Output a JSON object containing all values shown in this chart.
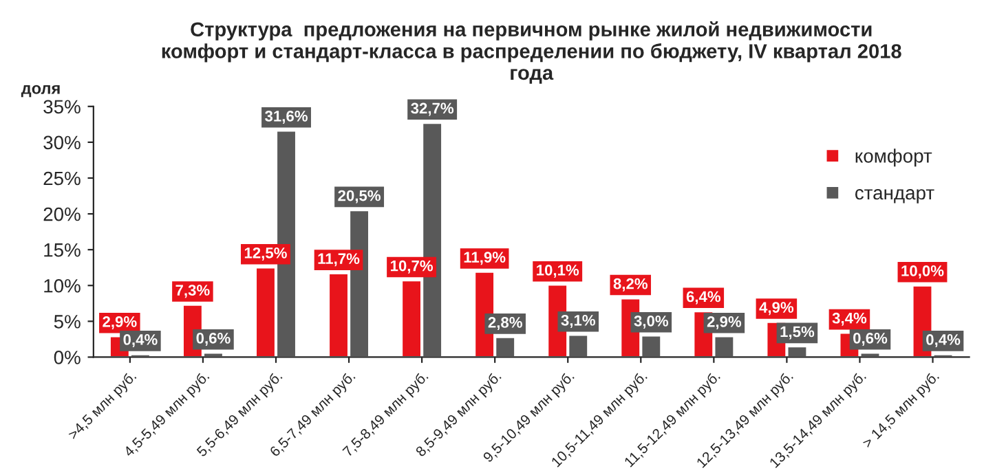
{
  "chart_data": {
    "type": "bar",
    "title": "Структура  предложения на первичном рынке жилой недвижимости\nкомфорт и стандарт-класса в распределении по бюджету, IV квартал 2018\nгода",
    "ylabel": "доля",
    "categories": [
      ">4,5 млн руб.",
      "4,5-5,49 млн руб.",
      "5,5-6,49 млн руб.",
      "6,5-7,49 млн руб.",
      "7,5-8,49 млн руб.",
      "8,5-9,49 млн руб.",
      "9,5-10,49 млн руб.",
      "10,5-11,49 млн руб.",
      "11,5-12,49 млн руб.",
      "12,5-13,49 млн руб.",
      "13,5-14,49 млн руб.",
      "> 14,5 млн руб."
    ],
    "series": [
      {
        "name": "комфорт",
        "color": "#e8141b",
        "values": [
          2.9,
          7.3,
          12.5,
          11.7,
          10.7,
          11.9,
          10.1,
          8.2,
          6.4,
          4.9,
          3.4,
          10.0
        ],
        "value_labels": [
          "2,9%",
          "7,3%",
          "12,5%",
          "11,7%",
          "10,7%",
          "11,9%",
          "10,1%",
          "8,2%",
          "6,4%",
          "4,9%",
          "3,4%",
          "10,0%"
        ]
      },
      {
        "name": "стандарт",
        "color": "#595959",
        "values": [
          0.4,
          0.6,
          31.6,
          20.5,
          32.7,
          2.8,
          3.1,
          3.0,
          2.9,
          1.5,
          0.6,
          0.4
        ],
        "value_labels": [
          "0,4%",
          "0,6%",
          "31,6%",
          "20,5%",
          "32,7%",
          "2,8%",
          "3,1%",
          "3,0%",
          "2,9%",
          "1,5%",
          "0,6%",
          "0,4%"
        ]
      }
    ],
    "ylim": [
      0,
      35
    ],
    "yticks": [
      {
        "value": 0,
        "label": "0%"
      },
      {
        "value": 5,
        "label": "5%"
      },
      {
        "value": 10,
        "label": "10%"
      },
      {
        "value": 15,
        "label": "15%"
      },
      {
        "value": 20,
        "label": "20%"
      },
      {
        "value": 25,
        "label": "25%"
      },
      {
        "value": 30,
        "label": "30%"
      },
      {
        "value": 35,
        "label": "35%"
      }
    ],
    "legend": "top right",
    "grid": false
  }
}
